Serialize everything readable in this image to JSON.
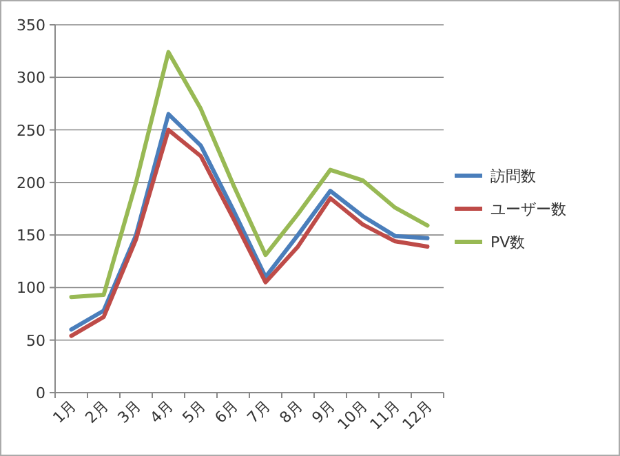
{
  "chart_data": {
    "type": "line",
    "categories": [
      "1月",
      "2月",
      "3月",
      "4月",
      "5月",
      "6月",
      "7月",
      "8月",
      "9月",
      "10月",
      "11月",
      "12月"
    ],
    "ylim": [
      0,
      350
    ],
    "yticks": [
      0,
      50,
      100,
      150,
      200,
      250,
      300,
      350
    ],
    "grid": "y",
    "legend": "right",
    "marker": "none",
    "line_style": "solid",
    "series": [
      {
        "name": "訪問数",
        "color": "#4a7ebb",
        "values": [
          60,
          78,
          150,
          265,
          235,
          174,
          110,
          150,
          192,
          168,
          149,
          147
        ]
      },
      {
        "name": "ユーザー数",
        "color": "#be4b48",
        "values": [
          54,
          72,
          146,
          250,
          225,
          166,
          105,
          139,
          185,
          160,
          144,
          139
        ]
      },
      {
        "name": "PV数",
        "color": "#98b954",
        "values": [
          91,
          93,
          200,
          324,
          270,
          198,
          131,
          170,
          212,
          202,
          176,
          159
        ]
      }
    ]
  }
}
